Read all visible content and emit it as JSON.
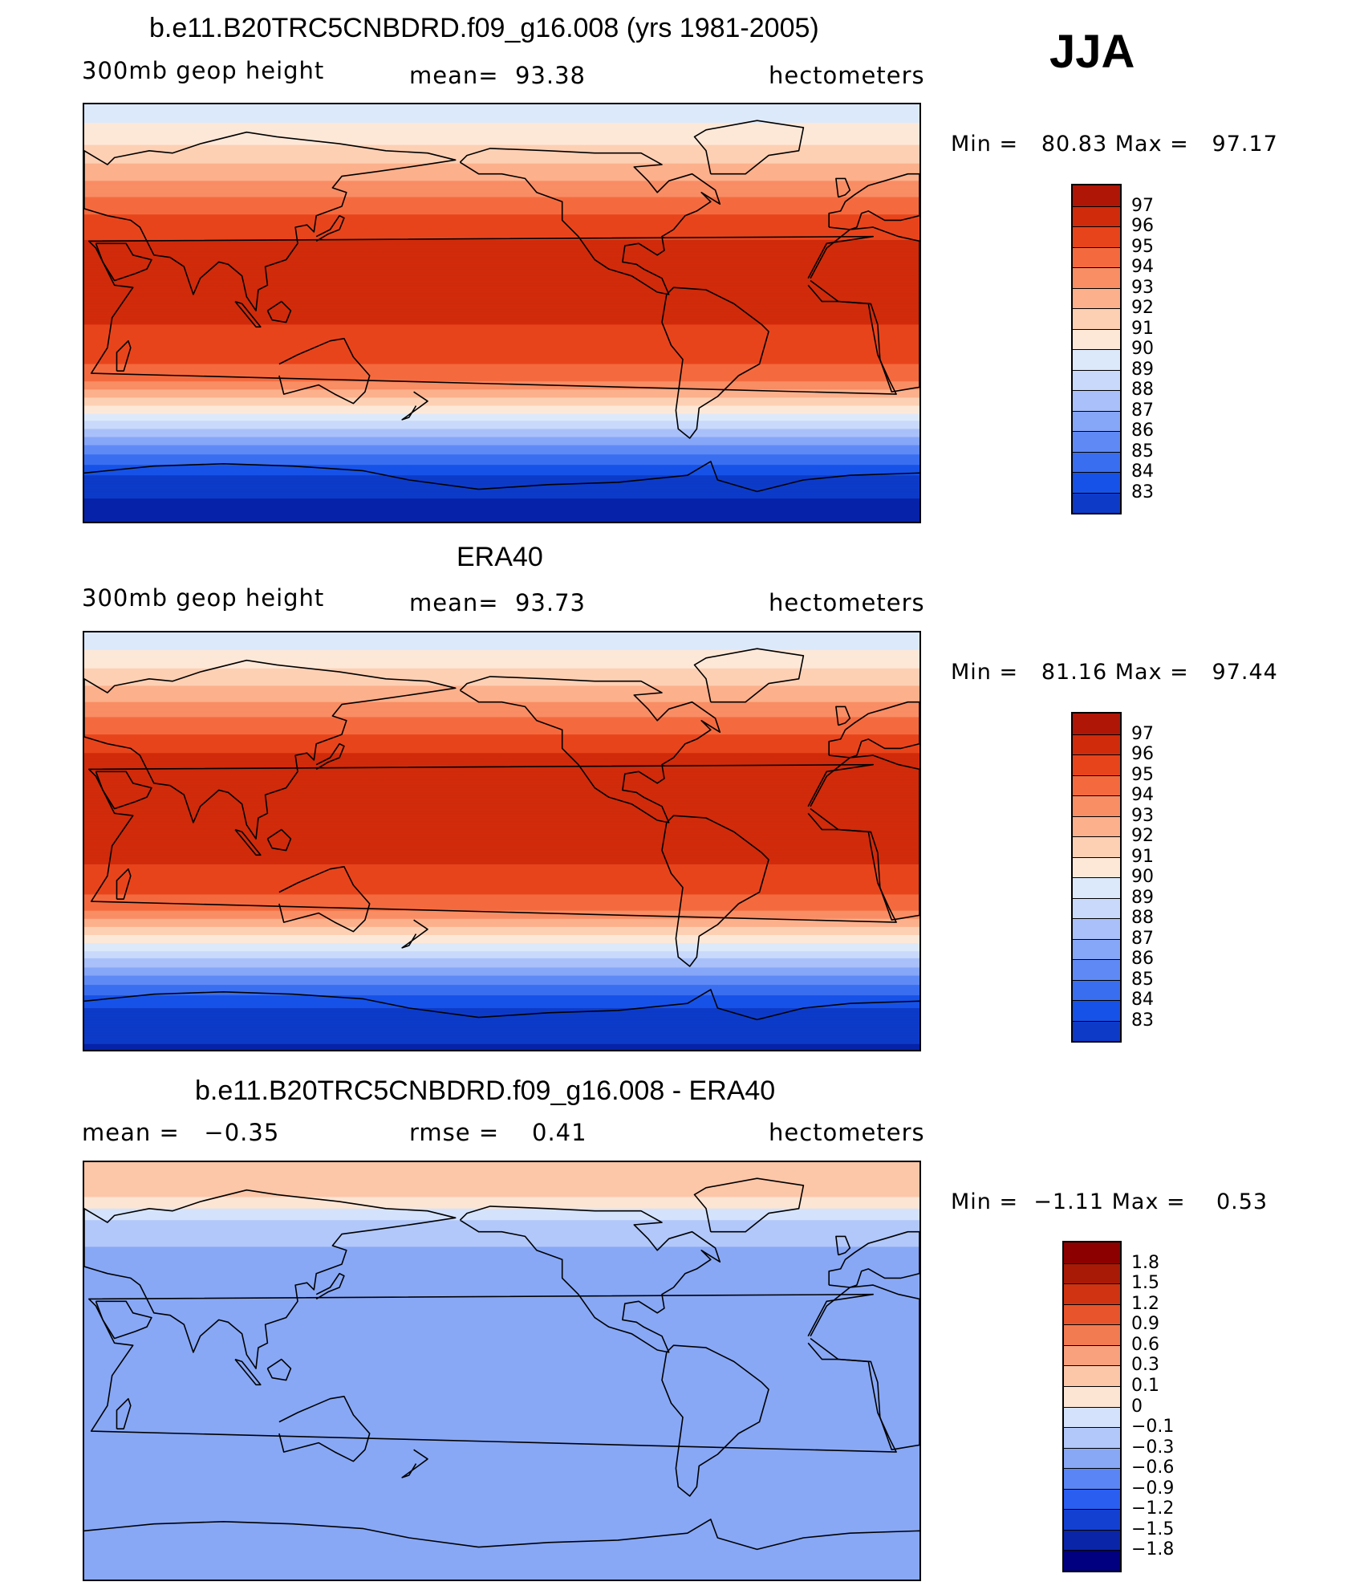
{
  "season": "JJA",
  "colors": {
    "abs": [
      "#000080",
      "#0622a8",
      "#0d3bc8",
      "#1752e8",
      "#3a6ef0",
      "#5f8af6",
      "#86a6f8",
      "#a9c0fa",
      "#c9d9fb",
      "#dce9fb",
      "#fde8d8",
      "#fdd0b4",
      "#fcb08c",
      "#f98d64",
      "#f46a3e",
      "#e8441c",
      "#d02b0b",
      "#b01606",
      "#8c0000"
    ],
    "diff": [
      "#000080",
      "#0a25a8",
      "#1340d0",
      "#2a5ef0",
      "#5a86f5",
      "#88a8f6",
      "#b2c8fa",
      "#d4e3fb",
      "#fde5d4",
      "#fcc6a8",
      "#f9a07c",
      "#f37b52",
      "#e8542c",
      "#cf3312",
      "#a81a06",
      "#8c0000"
    ],
    "land_line": "#000000"
  },
  "panels": [
    {
      "title": "b.e11.B20TRC5CNBDRD.f09_g16.008 (yrs 1981-2005)",
      "left_label": "300mb geop height",
      "mid_label": "mean=  93.38",
      "right_label": "hectometers",
      "minmax": "Min =   80.83 Max =   97.17"
    },
    {
      "title": "ERA40",
      "left_label": "300mb geop height",
      "mid_label": "mean=  93.73",
      "right_label": "hectometers",
      "minmax": "Min =   81.16 Max =   97.44"
    },
    {
      "title": "b.e11.B20TRC5CNBDRD.f09_g16.008 - ERA40",
      "left_label": "mean =   −0.35",
      "mid_label": "rmse =    0.41",
      "right_label": "hectometers",
      "minmax": "Min =  −1.11 Max =    0.53"
    }
  ],
  "chart_data": [
    {
      "type": "heatmap",
      "title": "b.e11.B20TRC5CNBDRD.f09_g16.008 (yrs 1981-2005)",
      "variable": "300mb geop height",
      "units": "hectometers",
      "mean": 93.38,
      "min": 80.83,
      "max": 97.17,
      "levels": [
        "97",
        "96",
        "95",
        "94",
        "93",
        "92",
        "91",
        "90",
        "89",
        "88",
        "87",
        "86",
        "85",
        "84",
        "83"
      ],
      "zonal_profile": {
        "lat": [
          90,
          80,
          70,
          60,
          50,
          40,
          30,
          20,
          10,
          0,
          -10,
          -20,
          -30,
          -40,
          -50,
          -60,
          -70,
          -80,
          -90
        ],
        "value": [
          89.3,
          90.2,
          91.3,
          92.6,
          94.0,
          95.3,
          96.1,
          96.3,
          96.2,
          96.1,
          95.9,
          95.3,
          93.9,
          91.0,
          88.0,
          85.2,
          83.0,
          82.0,
          81.5
        ]
      }
    },
    {
      "type": "heatmap",
      "title": "ERA40",
      "variable": "300mb geop height",
      "units": "hectometers",
      "mean": 93.73,
      "min": 81.16,
      "max": 97.44,
      "levels": [
        "97",
        "96",
        "95",
        "94",
        "93",
        "92",
        "91",
        "90",
        "89",
        "88",
        "87",
        "86",
        "85",
        "84",
        "83"
      ],
      "zonal_profile": {
        "lat": [
          90,
          80,
          70,
          60,
          50,
          40,
          30,
          20,
          10,
          0,
          -10,
          -20,
          -30,
          -40,
          -50,
          -60,
          -70,
          -80,
          -90
        ],
        "value": [
          89.1,
          90.3,
          91.6,
          93.0,
          94.5,
          95.8,
          96.7,
          96.9,
          96.6,
          96.3,
          96.0,
          95.4,
          94.0,
          91.2,
          88.2,
          85.4,
          83.2,
          82.3,
          81.9
        ]
      }
    },
    {
      "type": "heatmap",
      "title": "b.e11.B20TRC5CNBDRD.f09_g16.008 - ERA40",
      "units": "hectometers",
      "mean": -0.35,
      "rmse": 0.41,
      "min": -1.11,
      "max": 0.53,
      "levels": [
        "1.8",
        "1.5",
        "1.2",
        "0.9",
        "0.6",
        "0.3",
        "0.1",
        "0",
        "−0.1",
        "−0.3",
        "−0.6",
        "−0.9",
        "−1.2",
        "−1.5",
        "−1.8"
      ],
      "zonal_profile": {
        "lat": [
          90,
          80,
          70,
          60,
          50,
          40,
          30,
          20,
          10,
          0,
          -10,
          -20,
          -30,
          -40,
          -50,
          -60,
          -70,
          -80,
          -90
        ],
        "value": [
          0.25,
          0.2,
          0.0,
          -0.2,
          -0.35,
          -0.45,
          -0.4,
          -0.3,
          -0.35,
          -0.4,
          -0.45,
          -0.55,
          -0.5,
          -0.45,
          -0.45,
          -0.4,
          -0.4,
          -0.45,
          -0.45
        ]
      }
    }
  ]
}
